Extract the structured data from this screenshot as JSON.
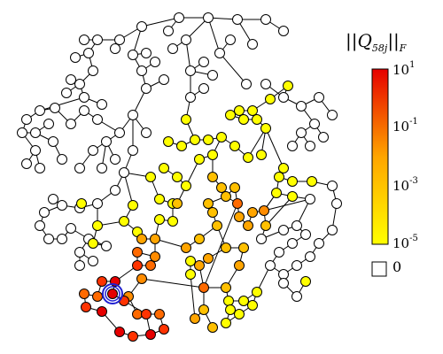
{
  "colorbar": {
    "title_prefix": "||",
    "title_symbol": "Q",
    "title_subscript": "58j",
    "title_suffix": "||",
    "title_norm": "F",
    "scale": "log",
    "ticks": [
      {
        "base": "10",
        "exp": "1",
        "value": 10
      },
      {
        "base": "10",
        "exp": "-1",
        "value": 0.1
      },
      {
        "base": "10",
        "exp": "-3",
        "value": 0.001
      },
      {
        "base": "10",
        "exp": "-5",
        "value": 1e-05
      }
    ],
    "zero_label": "0",
    "colors": {
      "low": "#ffff00",
      "mid": "#ffa500",
      "high": "#e60000",
      "zero": "#ffffff"
    }
  },
  "highlighted_node_color": "#1f1fd1",
  "node_classes": [
    "white",
    "yellow",
    "orange",
    "red"
  ]
}
